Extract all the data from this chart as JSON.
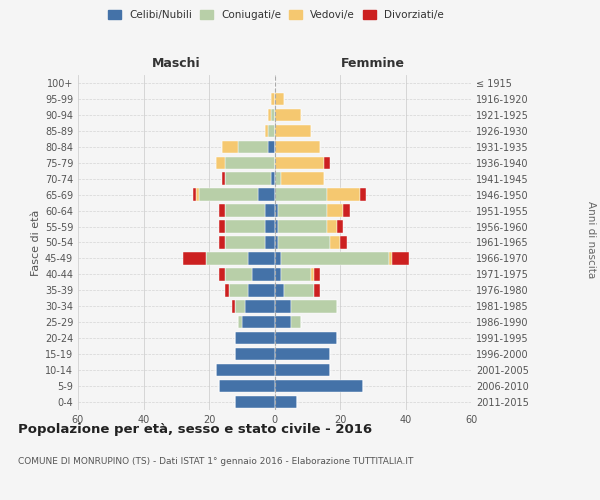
{
  "age_groups": [
    "0-4",
    "5-9",
    "10-14",
    "15-19",
    "20-24",
    "25-29",
    "30-34",
    "35-39",
    "40-44",
    "45-49",
    "50-54",
    "55-59",
    "60-64",
    "65-69",
    "70-74",
    "75-79",
    "80-84",
    "85-89",
    "90-94",
    "95-99",
    "100+"
  ],
  "birth_years": [
    "2011-2015",
    "2006-2010",
    "2001-2005",
    "1996-2000",
    "1991-1995",
    "1986-1990",
    "1981-1985",
    "1976-1980",
    "1971-1975",
    "1966-1970",
    "1961-1965",
    "1956-1960",
    "1951-1955",
    "1946-1950",
    "1941-1945",
    "1936-1940",
    "1931-1935",
    "1926-1930",
    "1921-1925",
    "1916-1920",
    "≤ 1915"
  ],
  "maschi": {
    "celibi": [
      12,
      17,
      18,
      12,
      12,
      10,
      9,
      8,
      7,
      8,
      3,
      3,
      3,
      5,
      1,
      0,
      2,
      0,
      0,
      0,
      0
    ],
    "coniugati": [
      0,
      0,
      0,
      0,
      0,
      1,
      3,
      6,
      8,
      13,
      12,
      12,
      12,
      18,
      14,
      15,
      9,
      2,
      1,
      0,
      0
    ],
    "vedovi": [
      0,
      0,
      0,
      0,
      0,
      0,
      0,
      0,
      0,
      0,
      0,
      0,
      0,
      1,
      0,
      3,
      5,
      1,
      1,
      1,
      0
    ],
    "divorziati": [
      0,
      0,
      0,
      0,
      0,
      0,
      1,
      1,
      2,
      7,
      2,
      2,
      2,
      1,
      1,
      0,
      0,
      0,
      0,
      0,
      0
    ]
  },
  "femmine": {
    "nubili": [
      7,
      27,
      17,
      17,
      19,
      5,
      5,
      3,
      2,
      2,
      1,
      1,
      1,
      0,
      0,
      0,
      0,
      0,
      0,
      0,
      0
    ],
    "coniugate": [
      0,
      0,
      0,
      0,
      0,
      3,
      14,
      9,
      9,
      33,
      16,
      15,
      15,
      16,
      2,
      0,
      0,
      0,
      0,
      0,
      0
    ],
    "vedove": [
      0,
      0,
      0,
      0,
      0,
      0,
      0,
      0,
      1,
      1,
      3,
      3,
      5,
      10,
      13,
      15,
      14,
      11,
      8,
      3,
      0
    ],
    "divorziate": [
      0,
      0,
      0,
      0,
      0,
      0,
      0,
      2,
      2,
      5,
      2,
      2,
      2,
      2,
      0,
      2,
      0,
      0,
      0,
      0,
      0
    ]
  },
  "colors": {
    "celibi": "#4472a8",
    "coniugati": "#b8cfa8",
    "vedovi": "#f5c870",
    "divorziati": "#cc2020"
  },
  "legend_labels": [
    "Celibi/Nubili",
    "Coniugati/e",
    "Vedovi/e",
    "Divorziati/e"
  ],
  "title": "Popolazione per età, sesso e stato civile - 2016",
  "subtitle": "COMUNE DI MONRUPINO (TS) - Dati ISTAT 1° gennaio 2016 - Elaborazione TUTTITALIA.IT",
  "ylabel_left": "Fasce di età",
  "ylabel_right": "Anni di nascita",
  "xlabel_left": "Maschi",
  "xlabel_right": "Femmine",
  "xlim": 60,
  "bg_color": "#f5f5f5",
  "grid_color": "#cccccc"
}
